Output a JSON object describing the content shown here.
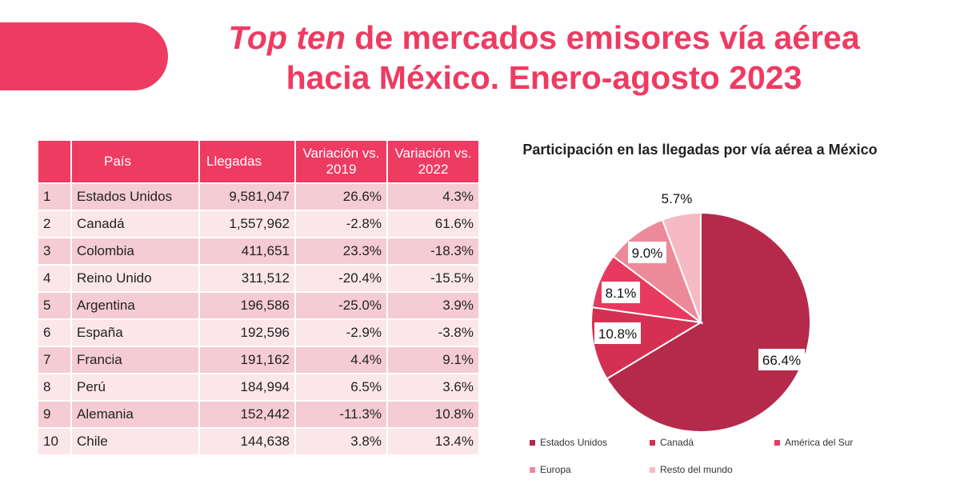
{
  "title": {
    "italic": "Top ten",
    "rest_line1": " de mercados emisores vía aérea",
    "line2": "hacia México. Enero-agosto 2023"
  },
  "table": {
    "headers": [
      "",
      "País",
      "Llegadas",
      "Variación vs. 2019",
      "Variación vs. 2022"
    ],
    "rows": [
      [
        "1",
        "Estados Unidos",
        "9,581,047",
        "26.6%",
        "4.3%"
      ],
      [
        "2",
        "Canadá",
        "1,557,962",
        "-2.8%",
        "61.6%"
      ],
      [
        "3",
        "Colombia",
        "411,651",
        "23.3%",
        "-18.3%"
      ],
      [
        "4",
        "Reino Unido",
        "311,512",
        "-20.4%",
        "-15.5%"
      ],
      [
        "5",
        "Argentina",
        "196,586",
        "-25.0%",
        "3.9%"
      ],
      [
        "6",
        "España",
        "192,596",
        "-2.9%",
        "-3.8%"
      ],
      [
        "7",
        "Francia",
        "191,162",
        "4.4%",
        "9.1%"
      ],
      [
        "8",
        "Perú",
        "184,994",
        "6.5%",
        "3.6%"
      ],
      [
        "9",
        "Alemania",
        "152,442",
        "-11.3%",
        "10.8%"
      ],
      [
        "10",
        "Chile",
        "144,638",
        "3.8%",
        "13.4%"
      ]
    ]
  },
  "chart_data": {
    "type": "pie",
    "title": "Participación en las llegadas por vía aérea a México",
    "categories": [
      "Estados Unidos",
      "Canadá",
      "América del Sur",
      "Europa",
      "Resto del mundo"
    ],
    "values": [
      66.4,
      10.8,
      8.1,
      9.0,
      5.7
    ],
    "labels": [
      "66.4%",
      "10.8%",
      "8.1%",
      "9.0%",
      "5.7%"
    ],
    "colors": [
      "#b5294a",
      "#d43152",
      "#e83a5e",
      "#ed8a99",
      "#f6bac4"
    ],
    "legend": "bottom"
  }
}
